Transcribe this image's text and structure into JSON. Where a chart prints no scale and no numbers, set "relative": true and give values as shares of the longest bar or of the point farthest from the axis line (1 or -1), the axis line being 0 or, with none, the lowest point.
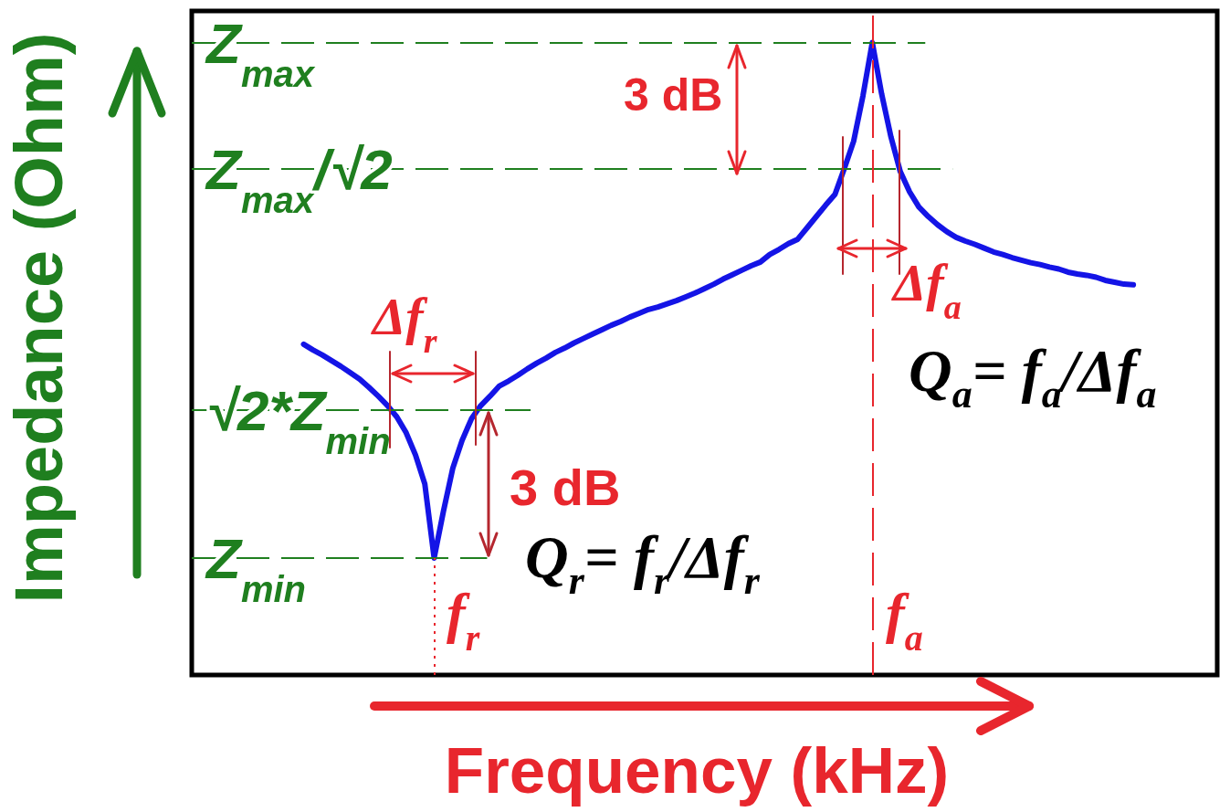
{
  "chart_data": {
    "type": "line",
    "relative": true,
    "xlabel": "Frequency (kHz)",
    "ylabel": "Impedance (Ohm)",
    "marker": "none",
    "categories": [
      null,
      null,
      null,
      null,
      null,
      null,
      null,
      null,
      null,
      null,
      null,
      null,
      null,
      null,
      null,
      null,
      null,
      null,
      null,
      null,
      null,
      null,
      null,
      null,
      null,
      null,
      null,
      null,
      null,
      null,
      null,
      null,
      null,
      null,
      null,
      null,
      null,
      null,
      null,
      null,
      null,
      null,
      null,
      null,
      null,
      null,
      null,
      null,
      null,
      null,
      null,
      null,
      null,
      null,
      null,
      null,
      null,
      null,
      null,
      null,
      null,
      null,
      null,
      null,
      null,
      null,
      null,
      null,
      null,
      null,
      null,
      null,
      null,
      null,
      null,
      null,
      null,
      null,
      null,
      null,
      null,
      null,
      null,
      null,
      null,
      null,
      null,
      null,
      null,
      null,
      null,
      null,
      null,
      null,
      null,
      null,
      null,
      null,
      null,
      null,
      null,
      null,
      null,
      null,
      null,
      null,
      null,
      null,
      null,
      null,
      null
    ],
    "series": [
      {
        "color": "#1414e6",
        "values": [
          null,
          null,
          null,
          null,
          null,
          null,
          null,
          null,
          null,
          null,
          null,
          null,
          0.523,
          0.514,
          0.506,
          0.497,
          0.488,
          0.478,
          0.468,
          0.455,
          0.441,
          0.426,
          0.408,
          0.383,
          0.348,
          0.302,
          0.185,
          0.259,
          0.327,
          0.371,
          0.405,
          0.426,
          0.441,
          0.457,
          0.465,
          0.474,
          0.484,
          0.493,
          0.501,
          0.51,
          0.517,
          0.525,
          0.532,
          0.539,
          0.546,
          0.553,
          0.559,
          0.566,
          0.572,
          0.578,
          0.582,
          0.587,
          0.592,
          0.598,
          0.604,
          0.611,
          0.618,
          0.626,
          0.633,
          0.64,
          0.647,
          0.653,
          0.665,
          0.673,
          0.682,
          0.689,
          0.707,
          0.725,
          0.743,
          0.76,
          0.801,
          0.844,
          0.916,
          1,
          0.919,
          0.851,
          0.796,
          0.764,
          0.74,
          0.725,
          0.712,
          0.701,
          0.692,
          0.686,
          0.681,
          0.675,
          0.669,
          0.665,
          0.66,
          0.656,
          0.652,
          0.649,
          0.645,
          0.642,
          0.637,
          0.634,
          0.632,
          0.629,
          0.624,
          0.621,
          0.618,
          0.617,
          null,
          null,
          null,
          null,
          null,
          null,
          null,
          null,
          null
        ]
      }
    ],
    "ref_lines": [
      {
        "axis": "y",
        "value": 1,
        "label": "Z$_{max}$",
        "color": "#1f7f1f",
        "line_style": "dashed"
      },
      {
        "axis": "y",
        "value": 0.8,
        "label": "Z$_{max}$/√2",
        "color": "#1f7f1f",
        "line_style": "dashed"
      },
      {
        "axis": "y",
        "value": 0.419,
        "label": "√2*Z$_{min}$",
        "color": "#1f7f1f",
        "line_style": "dashed"
      },
      {
        "axis": "y",
        "value": 0.185,
        "label": "Z$_{min}$",
        "color": "#1f7f1f",
        "line_style": "dashed"
      }
    ],
    "annotations": [
      "3 dB",
      "3 dB",
      "Δf$_{r}$",
      "Δf$_{a}$",
      "Q$_{r}$= f$_{r}$/Δf$_{r}$",
      "Q$_{a}$= f$_{a}$/Δf$_{a}$",
      "f$_{r}$",
      "f$_{a}$"
    ]
  }
}
